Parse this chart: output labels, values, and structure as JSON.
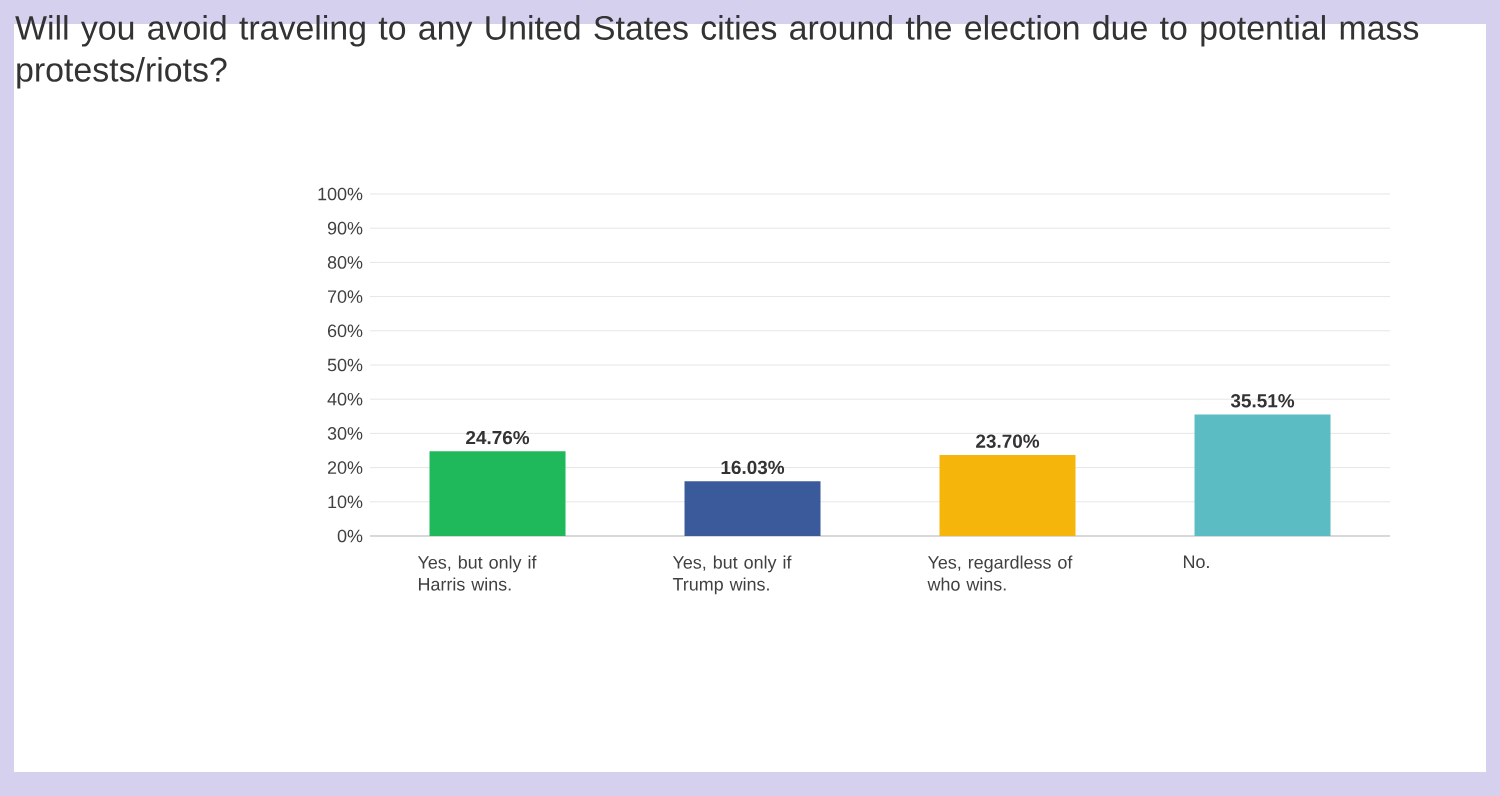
{
  "chart_data": {
    "type": "bar",
    "title": "Will you avoid traveling to any United States cities around the election due to potential mass protests/riots?",
    "categories": [
      "Yes, but only if Harris wins.",
      "Yes, but only if Trump wins.",
      "Yes, regardless of who wins.",
      "No."
    ],
    "values": [
      24.76,
      16.03,
      23.7,
      35.51
    ],
    "colors": [
      "#1fb85a",
      "#3a5a9c",
      "#f5b50a",
      "#5bbdc3"
    ],
    "value_labels": [
      "24.76%",
      "16.03%",
      "23.70%",
      "35.51%"
    ],
    "ylim": [
      0,
      100
    ],
    "yticks": [
      {
        "value": 0,
        "label": "0%"
      },
      {
        "value": 10,
        "label": "10%"
      },
      {
        "value": 20,
        "label": "20%"
      },
      {
        "value": 30,
        "label": "30%"
      },
      {
        "value": 40,
        "label": "40%"
      },
      {
        "value": 50,
        "label": "50%"
      },
      {
        "value": 60,
        "label": "60%"
      },
      {
        "value": 70,
        "label": "70%"
      },
      {
        "value": 80,
        "label": "80%"
      },
      {
        "value": 90,
        "label": "90%"
      },
      {
        "value": 100,
        "label": "100%"
      }
    ],
    "grid": "y"
  }
}
